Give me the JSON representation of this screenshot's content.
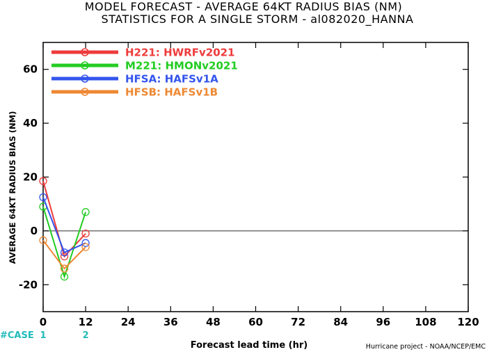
{
  "chart_data": {
    "type": "line",
    "title": "MODEL FORECAST - AVERAGE 64KT RADIUS BIAS (NM)",
    "subtitle": "STATISTICS FOR A SINGLE STORM - al082020_HANNA",
    "xlabel": "Forecast lead time (hr)",
    "ylabel": "AVERAGE 64KT RADIUS BIAS (NM)",
    "xlim": [
      0,
      120
    ],
    "ylim": [
      -30,
      70
    ],
    "xticks": [
      0,
      12,
      24,
      36,
      48,
      60,
      72,
      84,
      96,
      108,
      120
    ],
    "yticks": [
      -20,
      0,
      20,
      40,
      60
    ],
    "zero_line": true,
    "grid": false,
    "legend_position": "top-left",
    "series": [
      {
        "name": "H221: HWRFv2021",
        "color": "#ee3b3b",
        "x": [
          0,
          6,
          12
        ],
        "y": [
          18.5,
          -9.5,
          -1
        ]
      },
      {
        "name": "M221: HMONv2021",
        "color": "#22cc22",
        "x": [
          0,
          6,
          12
        ],
        "y": [
          9,
          -17,
          7
        ]
      },
      {
        "name": "HFSA: HAFSv1A",
        "color": "#3355ee",
        "x": [
          0,
          6,
          12
        ],
        "y": [
          12.5,
          -8,
          -4.5
        ]
      },
      {
        "name": "HFSB: HAFSv1B",
        "color": "#ee8833",
        "x": [
          0,
          6,
          12
        ],
        "y": [
          -3.5,
          -14,
          -6
        ]
      }
    ],
    "case_counts": {
      "label": "#CASE",
      "x": [
        0,
        12
      ],
      "values": [
        "1",
        "2"
      ],
      "color": "#22bbbb"
    }
  },
  "credit": "Hurricane project - NOAA/NCEP/EMC"
}
